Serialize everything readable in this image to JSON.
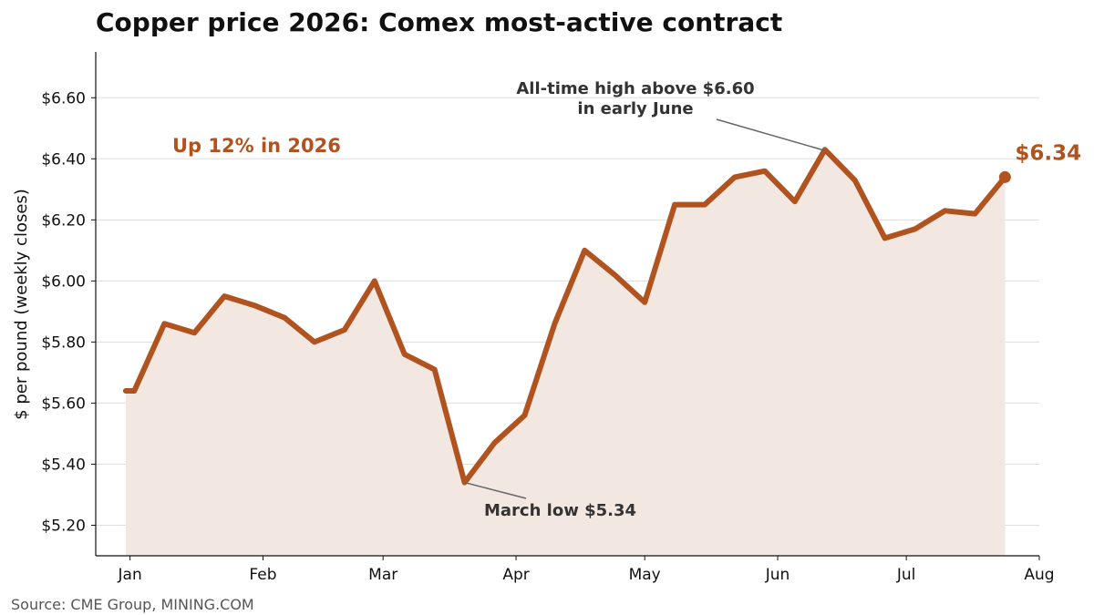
{
  "chart_data": {
    "type": "area",
    "title": "Copper price 2026: Comex most-active contract",
    "xlabel": "",
    "ylabel": "$ per pound (weekly closes)",
    "x_ticks": [
      "Jan",
      "Feb",
      "Mar",
      "Apr",
      "May",
      "Jun",
      "Jul",
      "Aug"
    ],
    "x_tick_dates": [
      "2026-01-01",
      "2026-02-01",
      "2026-03-01",
      "2026-04-01",
      "2026-05-01",
      "2026-06-01",
      "2026-07-01",
      "2026-08-01"
    ],
    "y_ticks": [
      "$5.20",
      "$5.40",
      "$5.60",
      "$5.80",
      "$6.00",
      "$6.20",
      "$6.40",
      "$6.60"
    ],
    "y_tick_values": [
      5.2,
      5.4,
      5.6,
      5.8,
      6.0,
      6.2,
      6.4,
      6.6
    ],
    "xlim": [
      "2025-12-24",
      "2026-08-01"
    ],
    "ylim": [
      5.1,
      6.75
    ],
    "grid": "horizontal",
    "series": [
      {
        "x": [
          "2025-12-31",
          "2026-01-02",
          "2026-01-09",
          "2026-01-16",
          "2026-01-23",
          "2026-01-30",
          "2026-02-06",
          "2026-02-13",
          "2026-02-20",
          "2026-02-27",
          "2026-03-06",
          "2026-03-13",
          "2026-03-20",
          "2026-03-27",
          "2026-04-03",
          "2026-04-10",
          "2026-04-17",
          "2026-04-24",
          "2026-05-01",
          "2026-05-08",
          "2026-05-15",
          "2026-05-22",
          "2026-05-29",
          "2026-06-05",
          "2026-06-12",
          "2026-06-19",
          "2026-06-26",
          "2026-07-03",
          "2026-07-10",
          "2026-07-17",
          "2026-07-24"
        ],
        "y": [
          5.64,
          5.64,
          5.86,
          5.83,
          5.95,
          5.92,
          5.88,
          5.8,
          5.84,
          6.0,
          5.76,
          5.71,
          5.34,
          5.47,
          5.56,
          5.86,
          6.1,
          6.02,
          5.93,
          6.25,
          6.25,
          6.34,
          6.36,
          6.26,
          6.43,
          6.33,
          6.14,
          6.17,
          6.23,
          6.22,
          6.34
        ]
      }
    ],
    "annotations": {
      "ytd_change": "Up 12% in 2026",
      "all_time_high": [
        "All-time high above $6.60",
        "in early June"
      ],
      "march_low": "March low $5.34",
      "last_value": "$6.34"
    },
    "colors": {
      "line": "#b0531f",
      "fill": "#f3e8e1",
      "accent": "#b0531f",
      "grid": "#dddddd",
      "annotation": "#333333"
    }
  },
  "source": "Source: CME Group, MINING.COM"
}
